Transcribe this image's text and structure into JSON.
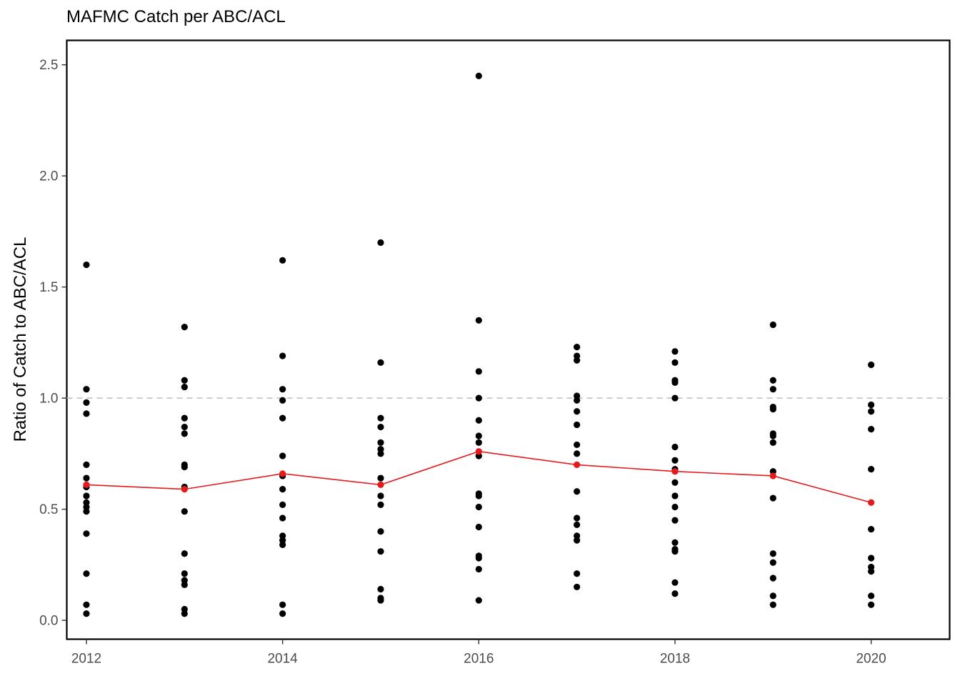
{
  "chart_data": {
    "type": "scatter",
    "title": "MAFMC Catch per ABC/ACL",
    "xlabel": "",
    "ylabel": "Ratio of Catch to ABC/ACL",
    "xlim": [
      2011.8,
      2020.8
    ],
    "ylim": [
      -0.085,
      2.61
    ],
    "x_ticks": [
      2012,
      2014,
      2016,
      2018,
      2020
    ],
    "y_ticks": [
      0.0,
      0.5,
      1.0,
      1.5,
      2.0,
      2.5
    ],
    "y_tick_labels": [
      "0.0",
      "0.5",
      "1.0",
      "1.5",
      "2.0",
      "2.5"
    ],
    "grid": false,
    "reference_line": {
      "y": 1.0,
      "style": "dashed",
      "color": "#bdbdbd"
    },
    "series": [
      {
        "type": "scatter",
        "color": "#000000",
        "points": [
          [
            2012,
            1.6
          ],
          [
            2012,
            1.04
          ],
          [
            2012,
            0.98
          ],
          [
            2012,
            0.93
          ],
          [
            2012,
            0.7
          ],
          [
            2012,
            0.64
          ],
          [
            2012,
            0.6
          ],
          [
            2012,
            0.56
          ],
          [
            2012,
            0.53
          ],
          [
            2012,
            0.51
          ],
          [
            2012,
            0.49
          ],
          [
            2012,
            0.39
          ],
          [
            2012,
            0.21
          ],
          [
            2012,
            0.07
          ],
          [
            2012,
            0.03
          ],
          [
            2013,
            1.32
          ],
          [
            2013,
            1.08
          ],
          [
            2013,
            1.05
          ],
          [
            2013,
            0.91
          ],
          [
            2013,
            0.87
          ],
          [
            2013,
            0.84
          ],
          [
            2013,
            0.7
          ],
          [
            2013,
            0.69
          ],
          [
            2013,
            0.6
          ],
          [
            2013,
            0.49
          ],
          [
            2013,
            0.3
          ],
          [
            2013,
            0.21
          ],
          [
            2013,
            0.18
          ],
          [
            2013,
            0.16
          ],
          [
            2013,
            0.05
          ],
          [
            2013,
            0.03
          ],
          [
            2014,
            1.62
          ],
          [
            2014,
            1.19
          ],
          [
            2014,
            1.04
          ],
          [
            2014,
            0.99
          ],
          [
            2014,
            0.91
          ],
          [
            2014,
            0.74
          ],
          [
            2014,
            0.65
          ],
          [
            2014,
            0.59
          ],
          [
            2014,
            0.52
          ],
          [
            2014,
            0.46
          ],
          [
            2014,
            0.38
          ],
          [
            2014,
            0.36
          ],
          [
            2014,
            0.34
          ],
          [
            2014,
            0.07
          ],
          [
            2014,
            0.03
          ],
          [
            2015,
            1.7
          ],
          [
            2015,
            1.16
          ],
          [
            2015,
            0.91
          ],
          [
            2015,
            0.87
          ],
          [
            2015,
            0.8
          ],
          [
            2015,
            0.77
          ],
          [
            2015,
            0.75
          ],
          [
            2015,
            0.64
          ],
          [
            2015,
            0.56
          ],
          [
            2015,
            0.52
          ],
          [
            2015,
            0.4
          ],
          [
            2015,
            0.31
          ],
          [
            2015,
            0.14
          ],
          [
            2015,
            0.1
          ],
          [
            2015,
            0.09
          ],
          [
            2016,
            2.45
          ],
          [
            2016,
            1.35
          ],
          [
            2016,
            1.12
          ],
          [
            2016,
            1.0
          ],
          [
            2016,
            0.9
          ],
          [
            2016,
            0.83
          ],
          [
            2016,
            0.8
          ],
          [
            2016,
            0.74
          ],
          [
            2016,
            0.57
          ],
          [
            2016,
            0.56
          ],
          [
            2016,
            0.51
          ],
          [
            2016,
            0.42
          ],
          [
            2016,
            0.29
          ],
          [
            2016,
            0.28
          ],
          [
            2016,
            0.23
          ],
          [
            2016,
            0.09
          ],
          [
            2017,
            1.23
          ],
          [
            2017,
            1.19
          ],
          [
            2017,
            1.17
          ],
          [
            2017,
            1.01
          ],
          [
            2017,
            0.99
          ],
          [
            2017,
            0.94
          ],
          [
            2017,
            0.88
          ],
          [
            2017,
            0.79
          ],
          [
            2017,
            0.75
          ],
          [
            2017,
            0.58
          ],
          [
            2017,
            0.46
          ],
          [
            2017,
            0.43
          ],
          [
            2017,
            0.38
          ],
          [
            2017,
            0.36
          ],
          [
            2017,
            0.21
          ],
          [
            2017,
            0.15
          ],
          [
            2018,
            1.21
          ],
          [
            2018,
            1.16
          ],
          [
            2018,
            1.08
          ],
          [
            2018,
            1.07
          ],
          [
            2018,
            1.0
          ],
          [
            2018,
            0.78
          ],
          [
            2018,
            0.72
          ],
          [
            2018,
            0.68
          ],
          [
            2018,
            0.62
          ],
          [
            2018,
            0.56
          ],
          [
            2018,
            0.51
          ],
          [
            2018,
            0.45
          ],
          [
            2018,
            0.35
          ],
          [
            2018,
            0.32
          ],
          [
            2018,
            0.31
          ],
          [
            2018,
            0.17
          ],
          [
            2018,
            0.12
          ],
          [
            2019,
            1.33
          ],
          [
            2019,
            1.08
          ],
          [
            2019,
            1.04
          ],
          [
            2019,
            0.96
          ],
          [
            2019,
            0.95
          ],
          [
            2019,
            0.84
          ],
          [
            2019,
            0.83
          ],
          [
            2019,
            0.8
          ],
          [
            2019,
            0.67
          ],
          [
            2019,
            0.55
          ],
          [
            2019,
            0.3
          ],
          [
            2019,
            0.26
          ],
          [
            2019,
            0.19
          ],
          [
            2019,
            0.11
          ],
          [
            2019,
            0.07
          ],
          [
            2020,
            1.15
          ],
          [
            2020,
            0.97
          ],
          [
            2020,
            0.94
          ],
          [
            2020,
            0.86
          ],
          [
            2020,
            0.68
          ],
          [
            2020,
            0.41
          ],
          [
            2020,
            0.28
          ],
          [
            2020,
            0.24
          ],
          [
            2020,
            0.22
          ],
          [
            2020,
            0.11
          ],
          [
            2020,
            0.07
          ]
        ]
      },
      {
        "type": "line",
        "color": "#e41a1c",
        "x": [
          2012,
          2013,
          2014,
          2015,
          2016,
          2017,
          2018,
          2019,
          2020
        ],
        "values": [
          0.61,
          0.59,
          0.66,
          0.61,
          0.76,
          0.7,
          0.67,
          0.65,
          0.53
        ]
      }
    ]
  }
}
